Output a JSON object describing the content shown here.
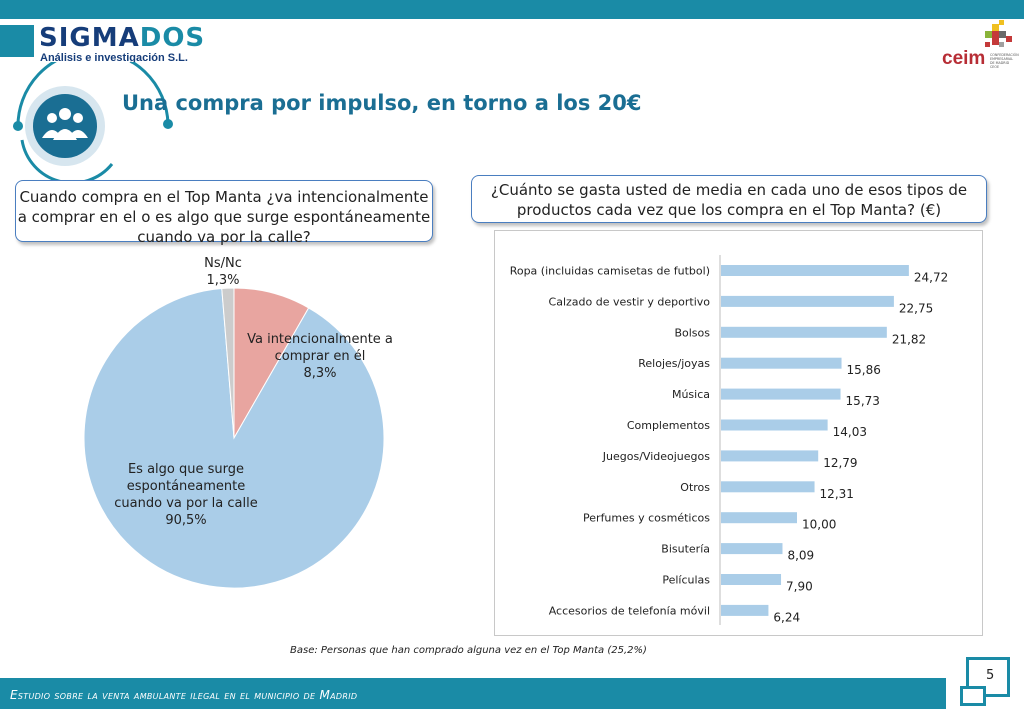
{
  "header": {
    "logo_name_a": "SIGMA",
    "logo_name_b": "DOS",
    "logo_subtitle": "Análisis e investigación S.L.",
    "partner_logo": "ceim",
    "partner_logo_caption": [
      "CONFEDERACIÓN",
      "EMPRESARIAL",
      "DE MADRID",
      "CEOE"
    ],
    "title": "Una compra por impulso, en torno a los 20€",
    "title_icon": "people-group-icon"
  },
  "left_panel": {
    "question": "Cuando compra en el Top Manta ¿va intencionalmente a comprar en el o es algo que surge espontáneamente cuando va por la calle?"
  },
  "right_panel": {
    "question": "¿Cuánto se gasta usted de media en cada uno de esos tipos de productos cada vez que los compra en el Top Manta? (€)"
  },
  "chart_data": [
    {
      "type": "pie",
      "slices": [
        {
          "label": "Es algo que surge espontáneamente cuando va por la calle",
          "label_lines": [
            "Es algo que surge",
            "espontáneamente",
            "cuando va por la calle",
            "90,5%"
          ],
          "value": 90.5,
          "color": "#aacde8"
        },
        {
          "label": "Va intencionalmente a comprar en él",
          "label_lines": [
            "Va intencionalmente  a",
            "comprar en él",
            "8,3%"
          ],
          "value": 8.3,
          "color": "#e8a5a0"
        },
        {
          "label": "Ns/Nc",
          "label_lines": [
            "Ns/Nc",
            "1,3%"
          ],
          "value": 1.3,
          "color": "#cccccc"
        }
      ]
    },
    {
      "type": "bar",
      "orientation": "horizontal",
      "categories": [
        "Ropa (incluidas camisetas de futbol)",
        "Calzado de vestir y deportivo",
        "Bolsos",
        "Relojes/joyas",
        "Música",
        "Complementos",
        "Juegos/Videojuegos",
        "Otros",
        "Perfumes y cosméticos",
        "Bisutería",
        "Películas",
        "Accesorios de telefonía móvil"
      ],
      "values": [
        24.72,
        22.75,
        21.82,
        15.86,
        15.73,
        14.03,
        12.79,
        12.31,
        10.0,
        8.09,
        7.9,
        6.24
      ],
      "value_labels": [
        "24,72",
        "22,75",
        "21,82",
        "15,86",
        "15,73",
        "14,03",
        "12,79",
        "12,31",
        "10,00",
        "8,09",
        "7,90",
        "6,24"
      ],
      "bar_color": "#aacde8",
      "xlim": [
        0,
        25
      ]
    }
  ],
  "base_note": "Base: Personas que han comprado alguna vez en el Top Manta (25,2%)",
  "footer": {
    "text": "Estudio sobre la venta ambulante ilegal en el municipio de Madrid",
    "page_number": "5"
  }
}
